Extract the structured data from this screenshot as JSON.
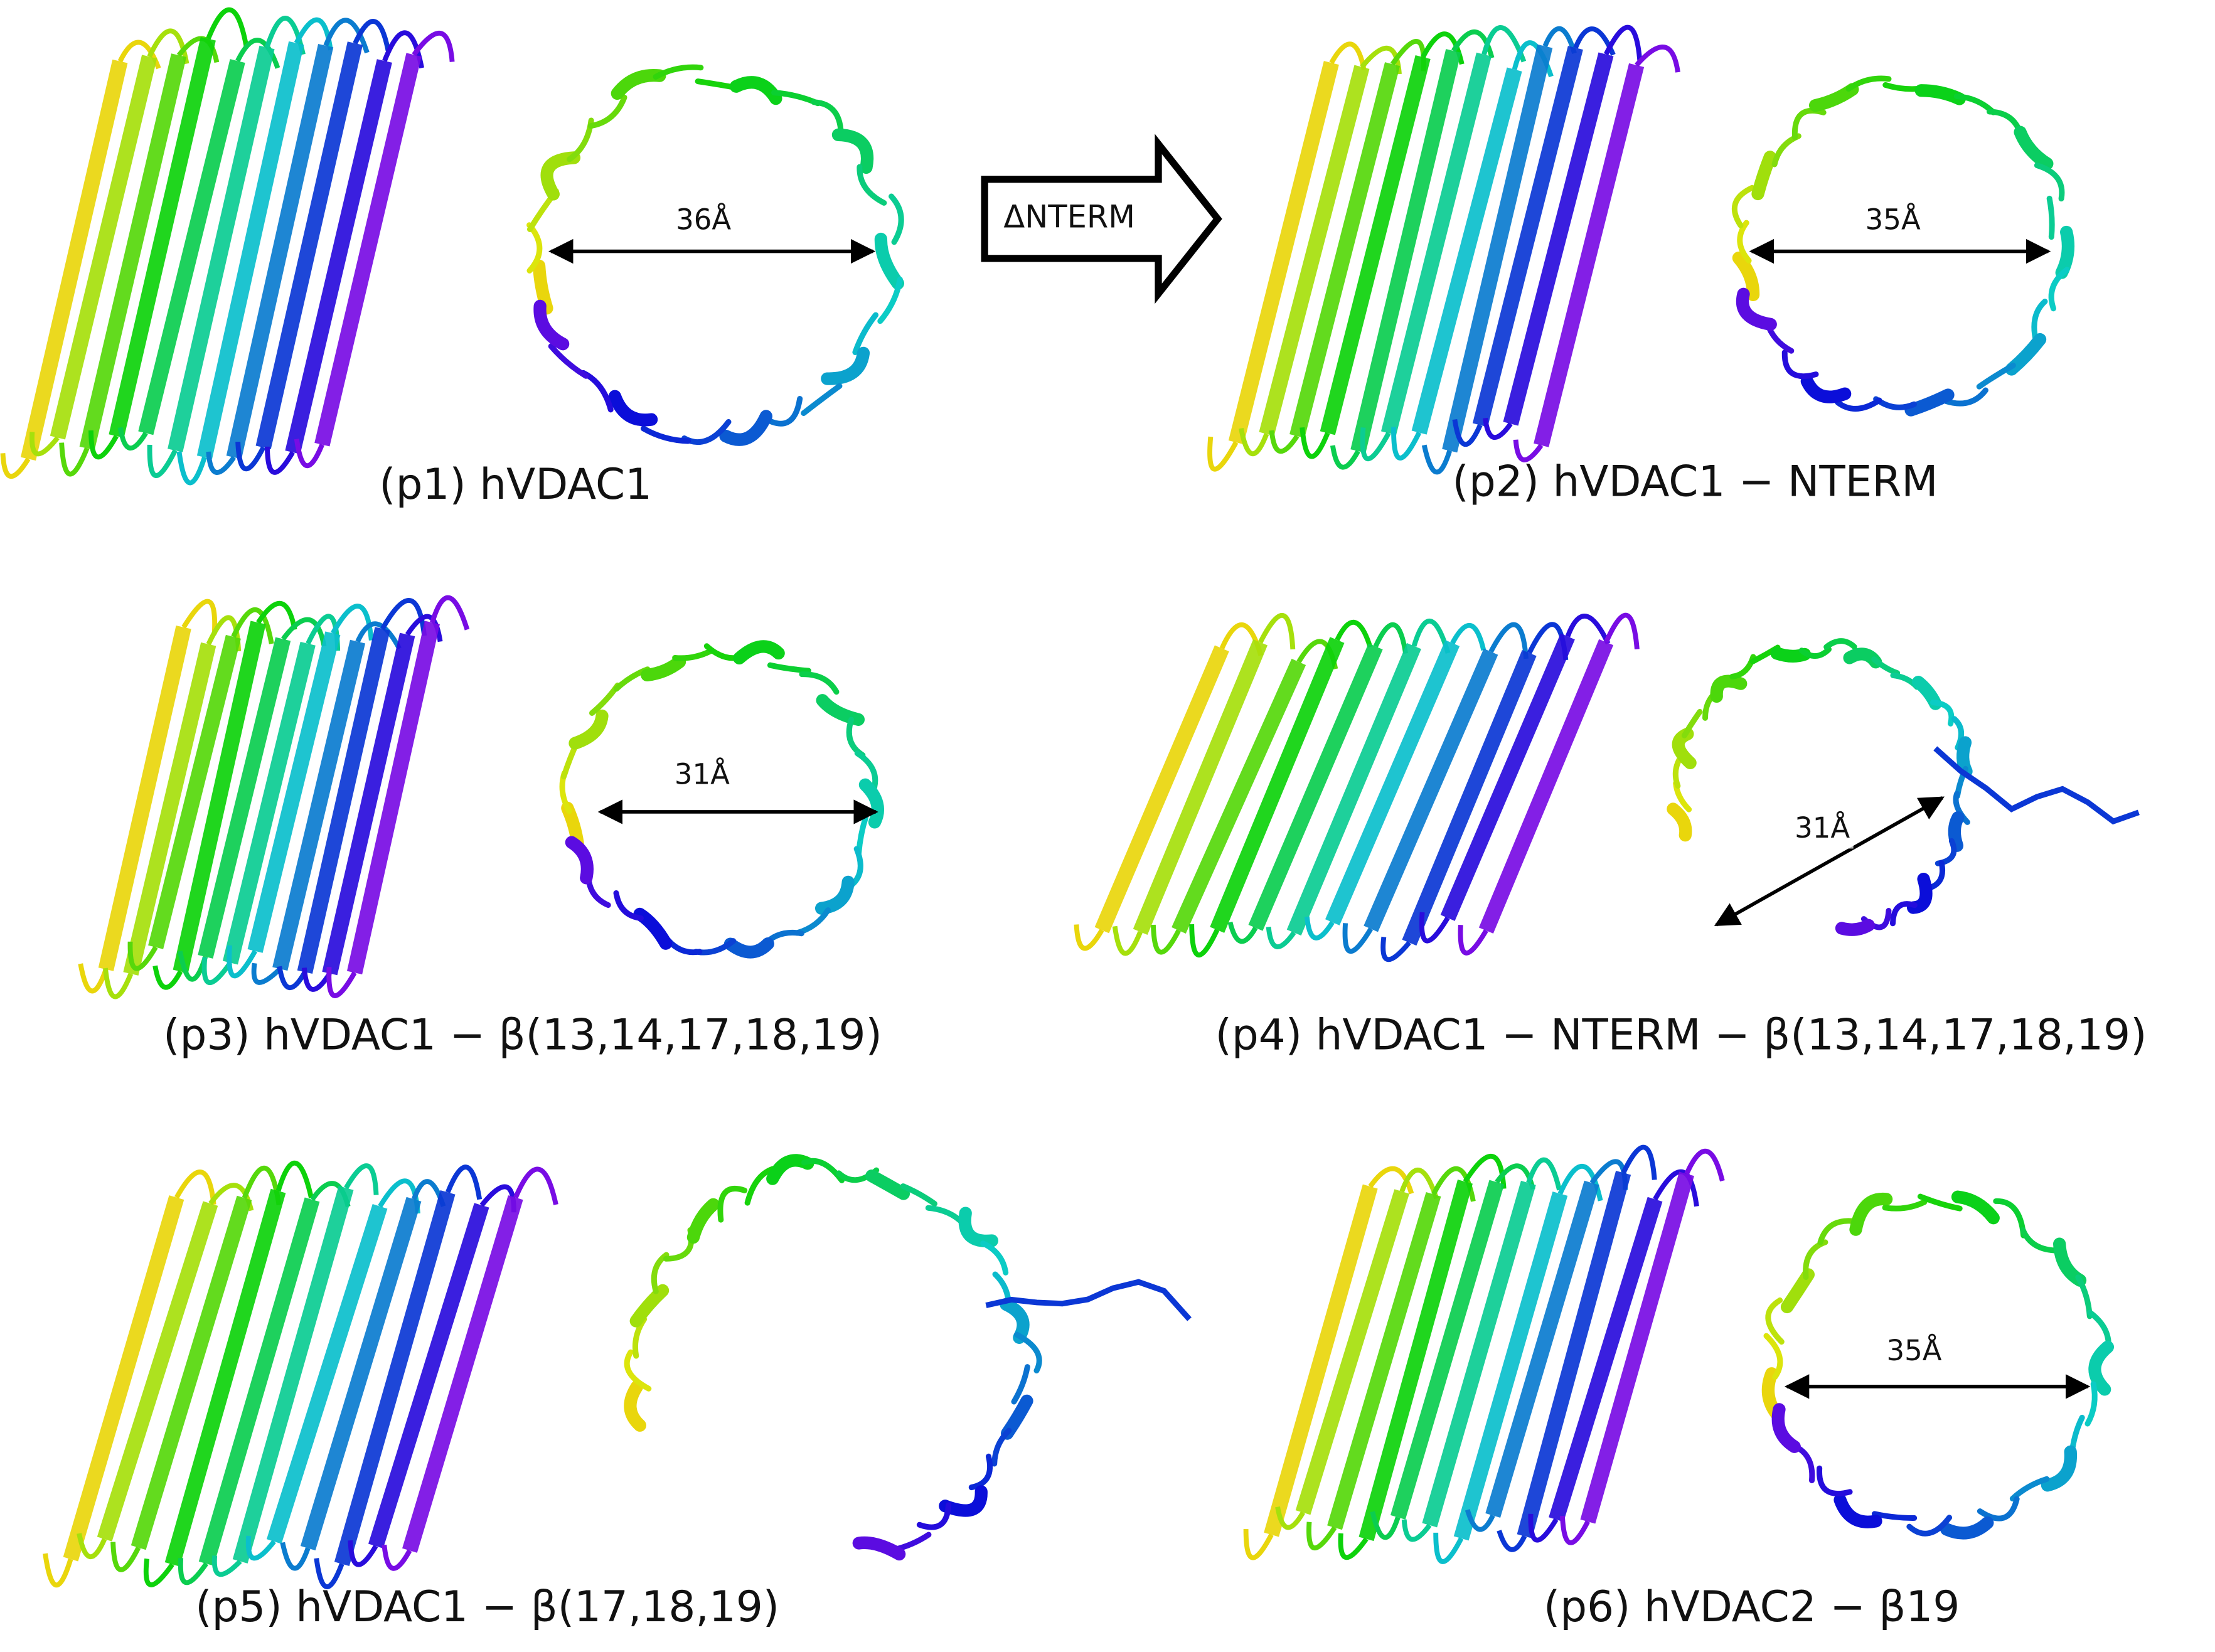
{
  "panels": [
    {
      "caption": "(p1)  hVDAC1",
      "measurement": "36Å"
    },
    {
      "caption": "(p2)  hVDAC1 − NTERM",
      "measurement": "35Å"
    },
    {
      "caption": "(p3) hVDAC1 − β(13,14,17,18,19)",
      "measurement": "31Å"
    },
    {
      "caption": "(p4) hVDAC1 − NTERM − β(13,14,17,18,19)",
      "measurement": "31Å"
    },
    {
      "caption": "(p5) hVDAC1 − β(17,18,19)"
    },
    {
      "caption": "(p6) hVDAC2 − β19",
      "measurement": "35Å"
    }
  ],
  "transition_arrow": {
    "label": "ΔNTERM"
  }
}
